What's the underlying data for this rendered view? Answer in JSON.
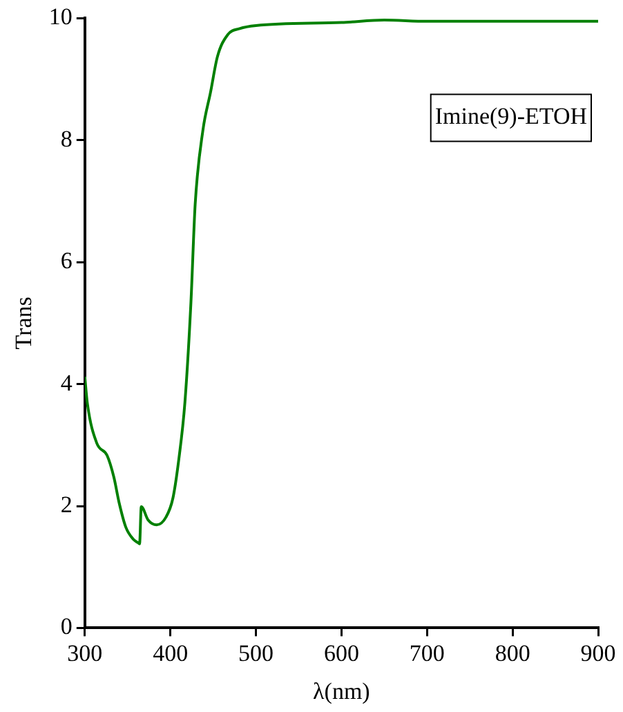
{
  "chart_data": {
    "type": "line",
    "xlabel": "λ(nm)",
    "ylabel": "Trans",
    "annotations": [
      "Imine(9)-ETOH"
    ],
    "x": [
      300,
      303,
      314,
      326,
      334,
      340,
      348,
      357,
      362,
      364,
      366,
      374,
      384,
      395,
      403,
      410,
      417,
      424,
      429,
      438,
      447,
      455,
      467,
      481,
      500,
      600,
      650,
      700,
      900
    ],
    "series": [
      {
        "color": "#008000",
        "values": [
          4.12,
          3.68,
          3.03,
          2.83,
          2.47,
          2.06,
          1.65,
          1.45,
          1.4,
          1.38,
          1.99,
          1.77,
          1.69,
          1.82,
          2.13,
          2.78,
          3.7,
          5.33,
          6.95,
          8.16,
          8.79,
          9.37,
          9.73,
          9.83,
          9.88,
          9.93,
          9.97,
          9.95,
          9.95
        ]
      }
    ],
    "xlim": [
      300,
      900
    ],
    "xticks": [
      300,
      400,
      500,
      600,
      700,
      800,
      900
    ],
    "ylim": [
      0,
      10
    ],
    "yticks": [
      0,
      2,
      4,
      6,
      8,
      10
    ],
    "grid": false,
    "legend": false,
    "marker": "none",
    "line_style": "solid"
  }
}
